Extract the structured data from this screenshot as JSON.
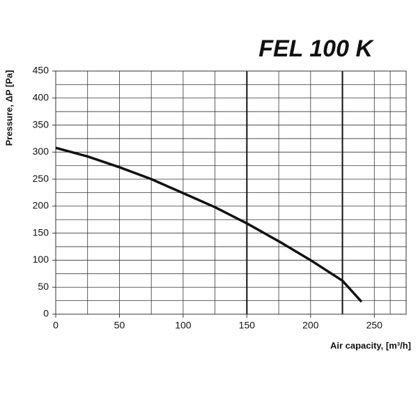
{
  "chart_data": {
    "type": "line",
    "title": "FEL 100 K",
    "x_label": "Air capacity, [m³/h]",
    "y_label": "Pressure, ΔP [Pa]",
    "x": [
      0,
      25,
      50,
      75,
      100,
      125,
      150,
      175,
      200,
      225,
      240
    ],
    "series": [
      {
        "name": "FEL 100 K",
        "color": "#111111",
        "values": [
          308,
          292,
          272,
          250,
          224,
          198,
          168,
          135,
          100,
          62,
          23
        ]
      }
    ],
    "xlim": [
      0,
      275
    ],
    "xticks": [
      0,
      50,
      100,
      150,
      200,
      250
    ],
    "ylim": [
      0,
      450
    ],
    "yticks": [
      0,
      50,
      100,
      150,
      200,
      250,
      300,
      350,
      400,
      450
    ],
    "grid": true,
    "thick_gridlines_x": [
      150,
      225
    ]
  }
}
